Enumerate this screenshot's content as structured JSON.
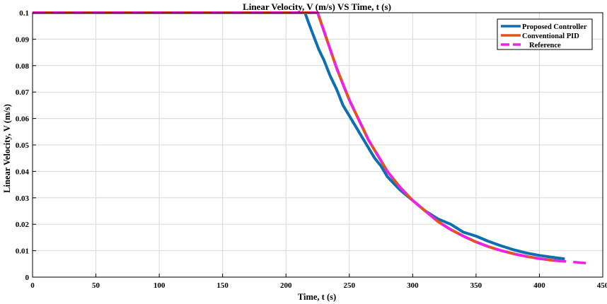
{
  "chart_data": {
    "type": "line",
    "title": "Linear Velocity, V (m/s) VS Time, t (s)",
    "xlabel": "Time, t (s)",
    "ylabel": "Linear Velocity, V (m/s)",
    "xlim": [
      0,
      450
    ],
    "ylim": [
      0,
      0.1
    ],
    "xticks": [
      0,
      50,
      100,
      150,
      200,
      250,
      300,
      350,
      400,
      450
    ],
    "yticks": [
      0,
      0.01,
      0.02,
      0.03,
      0.04,
      0.05,
      0.06,
      0.07,
      0.08,
      0.09,
      0.1
    ],
    "grid": true,
    "legend_position": "top-right",
    "series": [
      {
        "name": "Proposed Controller",
        "color": "#0b6fb0",
        "style": "solid",
        "x": [
          0,
          215,
          218,
          222,
          226,
          230,
          235,
          240,
          245,
          250,
          255,
          260,
          265,
          270,
          275,
          280,
          290,
          300,
          310,
          320,
          330,
          340,
          350,
          360,
          370,
          380,
          390,
          400,
          410,
          420
        ],
        "y": [
          0.1,
          0.1,
          0.096,
          0.091,
          0.086,
          0.082,
          0.076,
          0.071,
          0.065,
          0.061,
          0.057,
          0.053,
          0.049,
          0.045,
          0.042,
          0.038,
          0.033,
          0.029,
          0.025,
          0.022,
          0.02,
          0.017,
          0.0155,
          0.0135,
          0.0118,
          0.0103,
          0.0091,
          0.0082,
          0.0075,
          0.0069
        ]
      },
      {
        "name": "Conventional PID",
        "color": "#e8501e",
        "style": "solid",
        "x": [
          0,
          225,
          230,
          235,
          240,
          245,
          250,
          255,
          260,
          265,
          270,
          275,
          280,
          290,
          300,
          310,
          320,
          330,
          340,
          350,
          360,
          370,
          380,
          390,
          400,
          410,
          420
        ],
        "y": [
          0.1,
          0.1,
          0.093,
          0.086,
          0.079,
          0.073,
          0.067,
          0.062,
          0.057,
          0.052,
          0.048,
          0.044,
          0.04,
          0.034,
          0.029,
          0.025,
          0.021,
          0.018,
          0.0155,
          0.0133,
          0.0115,
          0.01,
          0.0088,
          0.0078,
          0.007,
          0.0064,
          0.006
        ]
      },
      {
        "name": "Reference",
        "color": "#f01ef0",
        "style": "dashed",
        "x": [
          0,
          225,
          230,
          235,
          240,
          245,
          250,
          255,
          260,
          265,
          270,
          275,
          280,
          290,
          300,
          310,
          320,
          330,
          340,
          350,
          360,
          370,
          380,
          390,
          400,
          410,
          420,
          430,
          440
        ],
        "y": [
          0.1,
          0.1,
          0.093,
          0.086,
          0.079,
          0.073,
          0.067,
          0.062,
          0.057,
          0.052,
          0.048,
          0.044,
          0.04,
          0.034,
          0.029,
          0.025,
          0.021,
          0.018,
          0.0155,
          0.0133,
          0.0115,
          0.01,
          0.0088,
          0.0078,
          0.007,
          0.0064,
          0.006,
          0.0056,
          0.0052
        ]
      }
    ]
  }
}
